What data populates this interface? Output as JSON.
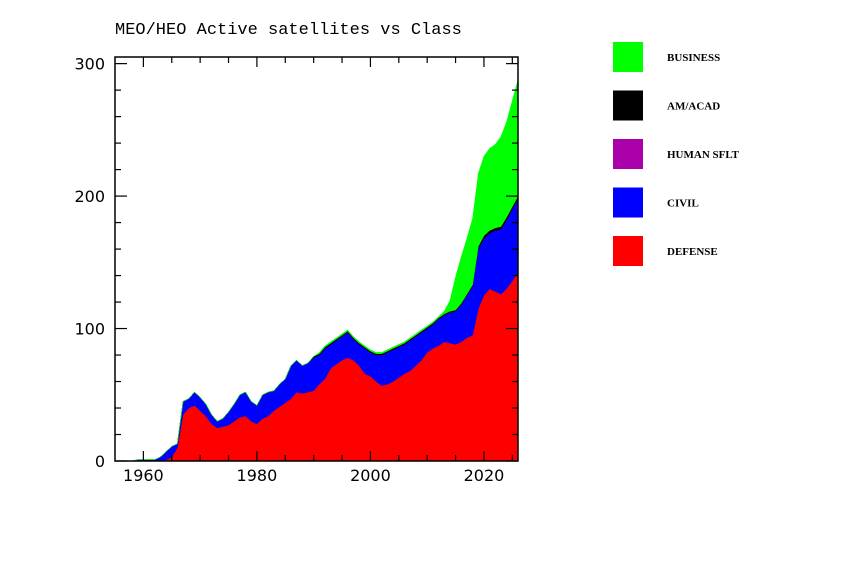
{
  "chart_data": {
    "type": "area",
    "stacked": true,
    "title": "MEO/HEO Active satellites vs Class",
    "xlabel": "",
    "ylabel": "",
    "xlim": [
      1955,
      2026
    ],
    "ylim": [
      0,
      305
    ],
    "x_ticks": [
      1960,
      1980,
      2000,
      2020
    ],
    "y_ticks": [
      0,
      100,
      200,
      300
    ],
    "grid": false,
    "legend_position": "right",
    "x": [
      1957,
      1958,
      1959,
      1960,
      1961,
      1962,
      1963,
      1964,
      1965,
      1966,
      1967,
      1968,
      1969,
      1970,
      1971,
      1972,
      1973,
      1974,
      1975,
      1976,
      1977,
      1978,
      1979,
      1980,
      1981,
      1982,
      1983,
      1984,
      1985,
      1986,
      1987,
      1988,
      1989,
      1990,
      1991,
      1992,
      1993,
      1994,
      1995,
      1996,
      1997,
      1998,
      1999,
      2000,
      2001,
      2002,
      2003,
      2004,
      2005,
      2006,
      2007,
      2008,
      2009,
      2010,
      2011,
      2012,
      2013,
      2014,
      2015,
      2016,
      2017,
      2018,
      2019,
      2020,
      2021,
      2022,
      2023,
      2024,
      2025,
      2026
    ],
    "series": [
      {
        "name": "DEFENSE",
        "color": "#ff0000",
        "values": [
          0,
          0,
          0,
          0,
          0,
          0,
          0,
          1,
          3,
          10,
          35,
          40,
          42,
          38,
          34,
          28,
          25,
          26,
          27,
          30,
          33,
          34,
          30,
          28,
          32,
          34,
          38,
          41,
          44,
          47,
          52,
          51,
          52,
          53,
          58,
          62,
          70,
          73,
          76,
          78,
          76,
          72,
          66,
          64,
          60,
          57,
          58,
          60,
          63,
          66,
          68,
          72,
          76,
          82,
          85,
          87,
          90,
          89,
          88,
          90,
          93,
          95,
          115,
          125,
          130,
          128,
          126,
          130,
          136,
          142
        ]
      },
      {
        "name": "CIVIL",
        "color": "#0000ff",
        "values": [
          0,
          0,
          1,
          1,
          1,
          1,
          3,
          6,
          8,
          3,
          10,
          7,
          10,
          10,
          9,
          7,
          5,
          6,
          10,
          13,
          17,
          18,
          15,
          14,
          18,
          18,
          15,
          17,
          18,
          25,
          24,
          21,
          22,
          25,
          22,
          23,
          18,
          18,
          18,
          19,
          16,
          16,
          19,
          18,
          20,
          23,
          24,
          24,
          23,
          22,
          23,
          22,
          21,
          18,
          18,
          20,
          20,
          23,
          25,
          28,
          32,
          37,
          45,
          43,
          42,
          46,
          49,
          52,
          54,
          56
        ]
      },
      {
        "name": "HUMAN SFLT",
        "color": "#aa00aa",
        "values": [
          0,
          0,
          0,
          0,
          0,
          0,
          0,
          0,
          0,
          0,
          0,
          0,
          0,
          0,
          0,
          0,
          0,
          0,
          0,
          0,
          0,
          0,
          0,
          0,
          0,
          0,
          0,
          0,
          0,
          0,
          0,
          0,
          0,
          0,
          0,
          0,
          0,
          0,
          0,
          0,
          0,
          0,
          0,
          0,
          0,
          0,
          0,
          0,
          0,
          0,
          0,
          0,
          0,
          0,
          0,
          0,
          0,
          0,
          0,
          0,
          0,
          0,
          0,
          0,
          0,
          0,
          0,
          0,
          0,
          0
        ]
      },
      {
        "name": "AM/ACAD",
        "color": "#000000",
        "values": [
          0,
          0,
          0,
          0,
          0,
          0,
          0,
          0,
          0,
          0,
          0,
          0,
          0,
          0,
          0,
          0,
          0,
          0,
          0,
          0,
          0,
          0,
          0,
          0,
          0,
          0,
          0,
          0,
          0,
          0,
          0,
          0,
          0,
          1,
          1,
          1,
          1,
          1,
          1,
          1,
          1,
          1,
          1,
          1,
          1,
          1,
          1,
          1,
          1,
          1,
          1,
          1,
          1,
          1,
          1,
          1,
          1,
          1,
          1,
          1,
          1,
          1,
          2,
          2,
          2,
          2,
          2,
          2,
          2,
          2
        ]
      },
      {
        "name": "BUSINESS",
        "color": "#00ff00",
        "values": [
          0,
          0,
          0,
          0,
          0,
          0,
          0,
          0,
          0,
          0,
          0,
          0,
          0,
          0,
          0,
          0,
          0,
          0,
          0,
          0,
          0,
          0,
          0,
          0,
          0,
          0,
          0,
          0,
          0,
          0,
          0,
          0,
          0,
          0,
          1,
          1,
          1,
          1,
          1,
          1,
          1,
          1,
          1,
          1,
          1,
          1,
          1,
          1,
          1,
          1,
          1,
          1,
          1,
          1,
          1,
          1,
          2,
          8,
          25,
          35,
          42,
          50,
          55,
          60,
          62,
          63,
          68,
          72,
          80,
          88
        ]
      }
    ],
    "legend": [
      "BUSINESS",
      "AM/ACAD",
      "HUMAN SFLT",
      "CIVIL",
      "DEFENSE"
    ]
  }
}
